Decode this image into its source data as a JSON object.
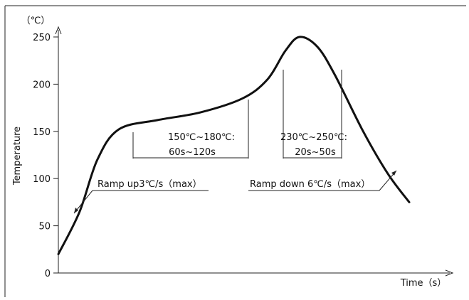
{
  "chart_data": {
    "type": "line",
    "title": "",
    "xlabel": "Time（s）",
    "ylabel": "Temperature",
    "y_unit": "（℃）",
    "ylim": [
      0,
      250
    ],
    "yticks": [
      "0",
      "50",
      "100",
      "150",
      "200",
      "250"
    ],
    "grid": false,
    "series": [
      {
        "points": [
          [
            0.0,
            20
          ],
          [
            0.06,
            65
          ],
          [
            0.11,
            120
          ],
          [
            0.17,
            152
          ],
          [
            0.28,
            162
          ],
          [
            0.4,
            170
          ],
          [
            0.52,
            185
          ],
          [
            0.59,
            205
          ],
          [
            0.64,
            235
          ],
          [
            0.68,
            250
          ],
          [
            0.73,
            240
          ],
          [
            0.78,
            210
          ],
          [
            0.86,
            150
          ],
          [
            0.93,
            105
          ],
          [
            0.99,
            75
          ]
        ]
      }
    ],
    "annotations": [
      {
        "id": "ramp-up",
        "text": "Ramp up3℃/s（max）"
      },
      {
        "id": "preheat-line1",
        "text": "150℃~180℃:"
      },
      {
        "id": "preheat-line2",
        "text": "60s~120s"
      },
      {
        "id": "reflow-line1",
        "text": "230℃~250℃:"
      },
      {
        "id": "reflow-line2",
        "text": "20s~50s"
      },
      {
        "id": "ramp-down",
        "text": "Ramp down 6℃/s（max）"
      }
    ]
  }
}
